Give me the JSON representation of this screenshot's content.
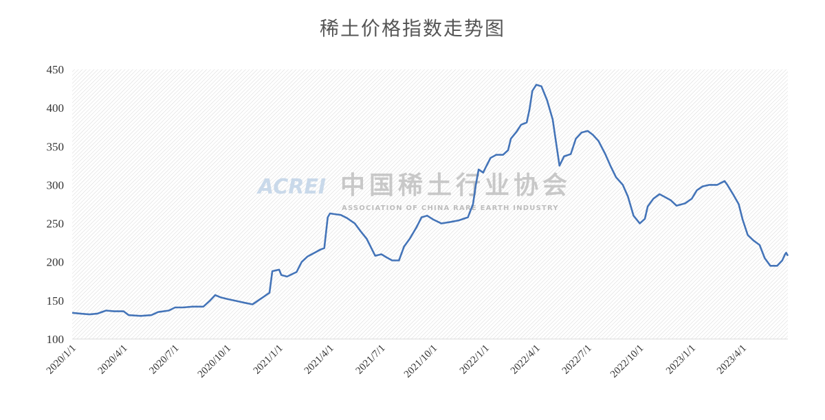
{
  "chart_data": {
    "type": "line",
    "title": "稀土价格指数走势图",
    "ylim": [
      100,
      450
    ],
    "yticks": [
      100,
      150,
      200,
      250,
      300,
      350,
      400,
      450
    ],
    "xlim": [
      "2020-01-01",
      "2023-06-20"
    ],
    "xticks": [
      {
        "label": "2020/1/1",
        "date": "2020-01-01"
      },
      {
        "label": "2020/4/1",
        "date": "2020-04-01"
      },
      {
        "label": "2020/7/1",
        "date": "2020-07-01"
      },
      {
        "label": "2020/10/1",
        "date": "2020-10-01"
      },
      {
        "label": "2021/1/1",
        "date": "2021-01-01"
      },
      {
        "label": "2021/4/1",
        "date": "2021-04-01"
      },
      {
        "label": "2021/7/1",
        "date": "2021-07-01"
      },
      {
        "label": "2021/10/1",
        "date": "2021-10-01"
      },
      {
        "label": "2022/1/1",
        "date": "2022-01-01"
      },
      {
        "label": "2022/4/1",
        "date": "2022-04-01"
      },
      {
        "label": "2022/7/1",
        "date": "2022-07-01"
      },
      {
        "label": "2022/10/1",
        "date": "2022-10-01"
      },
      {
        "label": "2023/1/1",
        "date": "2023-01-01"
      },
      {
        "label": "2023/4/1",
        "date": "2023-04-01"
      }
    ],
    "grid": false,
    "series": [
      {
        "color": "#4474b8",
        "points": [
          [
            "2020-01-01",
            134
          ],
          [
            "2020-01-15",
            133
          ],
          [
            "2020-02-01",
            132
          ],
          [
            "2020-02-15",
            133
          ],
          [
            "2020-03-01",
            137
          ],
          [
            "2020-03-15",
            136
          ],
          [
            "2020-04-01",
            136
          ],
          [
            "2020-04-10",
            131
          ],
          [
            "2020-05-01",
            130
          ],
          [
            "2020-05-20",
            131
          ],
          [
            "2020-06-01",
            135
          ],
          [
            "2020-06-20",
            137
          ],
          [
            "2020-07-01",
            141
          ],
          [
            "2020-07-15",
            141
          ],
          [
            "2020-08-01",
            142
          ],
          [
            "2020-08-20",
            142
          ],
          [
            "2020-09-01",
            150
          ],
          [
            "2020-09-10",
            157
          ],
          [
            "2020-09-20",
            154
          ],
          [
            "2020-10-01",
            152
          ],
          [
            "2020-10-20",
            149
          ],
          [
            "2020-11-01",
            147
          ],
          [
            "2020-11-15",
            145
          ],
          [
            "2020-12-01",
            153
          ],
          [
            "2020-12-15",
            160
          ],
          [
            "2020-12-20",
            188
          ],
          [
            "2021-01-01",
            190
          ],
          [
            "2021-01-05",
            183
          ],
          [
            "2021-01-15",
            181
          ],
          [
            "2021-02-01",
            187
          ],
          [
            "2021-02-10",
            200
          ],
          [
            "2021-02-20",
            207
          ],
          [
            "2021-03-05",
            212
          ],
          [
            "2021-03-15",
            216
          ],
          [
            "2021-03-22",
            218
          ],
          [
            "2021-03-28",
            258
          ],
          [
            "2021-04-01",
            263
          ],
          [
            "2021-04-10",
            262
          ],
          [
            "2021-04-20",
            261
          ],
          [
            "2021-05-01",
            257
          ],
          [
            "2021-05-15",
            250
          ],
          [
            "2021-05-25",
            240
          ],
          [
            "2021-06-05",
            230
          ],
          [
            "2021-06-20",
            208
          ],
          [
            "2021-07-01",
            210
          ],
          [
            "2021-07-10",
            206
          ],
          [
            "2021-07-20",
            202
          ],
          [
            "2021-08-01",
            202
          ],
          [
            "2021-08-10",
            220
          ],
          [
            "2021-08-20",
            230
          ],
          [
            "2021-09-01",
            245
          ],
          [
            "2021-09-10",
            258
          ],
          [
            "2021-09-20",
            260
          ],
          [
            "2021-10-01",
            255
          ],
          [
            "2021-10-15",
            250
          ],
          [
            "2021-11-01",
            252
          ],
          [
            "2021-11-15",
            254
          ],
          [
            "2021-12-01",
            258
          ],
          [
            "2021-12-10",
            275
          ],
          [
            "2021-12-15",
            300
          ],
          [
            "2021-12-20",
            320
          ],
          [
            "2021-12-28",
            316
          ],
          [
            "2022-01-01",
            322
          ],
          [
            "2022-01-10",
            335
          ],
          [
            "2022-01-20",
            339
          ],
          [
            "2022-02-01",
            339
          ],
          [
            "2022-02-10",
            345
          ],
          [
            "2022-02-15",
            360
          ],
          [
            "2022-02-25",
            369
          ],
          [
            "2022-03-05",
            378
          ],
          [
            "2022-03-15",
            381
          ],
          [
            "2022-03-20",
            398
          ],
          [
            "2022-03-25",
            422
          ],
          [
            "2022-04-01",
            430
          ],
          [
            "2022-04-10",
            428
          ],
          [
            "2022-04-20",
            410
          ],
          [
            "2022-04-30",
            385
          ],
          [
            "2022-05-05",
            360
          ],
          [
            "2022-05-12",
            325
          ],
          [
            "2022-05-20",
            337
          ],
          [
            "2022-06-01",
            340
          ],
          [
            "2022-06-10",
            360
          ],
          [
            "2022-06-20",
            368
          ],
          [
            "2022-07-01",
            370
          ],
          [
            "2022-07-10",
            365
          ],
          [
            "2022-07-20",
            357
          ],
          [
            "2022-08-01",
            340
          ],
          [
            "2022-08-10",
            325
          ],
          [
            "2022-08-20",
            310
          ],
          [
            "2022-09-01",
            300
          ],
          [
            "2022-09-10",
            285
          ],
          [
            "2022-09-20",
            260
          ],
          [
            "2022-10-01",
            250
          ],
          [
            "2022-10-10",
            256
          ],
          [
            "2022-10-15",
            272
          ],
          [
            "2022-10-25",
            282
          ],
          [
            "2022-11-05",
            288
          ],
          [
            "2022-11-15",
            284
          ],
          [
            "2022-11-25",
            280
          ],
          [
            "2022-12-05",
            273
          ],
          [
            "2022-12-20",
            276
          ],
          [
            "2023-01-01",
            282
          ],
          [
            "2023-01-10",
            293
          ],
          [
            "2023-01-20",
            298
          ],
          [
            "2023-02-01",
            300
          ],
          [
            "2023-02-15",
            300
          ],
          [
            "2023-02-28",
            305
          ],
          [
            "2023-03-05",
            300
          ],
          [
            "2023-03-15",
            288
          ],
          [
            "2023-03-25",
            275
          ],
          [
            "2023-04-01",
            255
          ],
          [
            "2023-04-10",
            235
          ],
          [
            "2023-04-20",
            228
          ],
          [
            "2023-05-01",
            222
          ],
          [
            "2023-05-10",
            205
          ],
          [
            "2023-05-20",
            195
          ],
          [
            "2023-06-01",
            195
          ],
          [
            "2023-06-10",
            202
          ],
          [
            "2023-06-15",
            210
          ],
          [
            "2023-06-17",
            212
          ],
          [
            "2023-06-20",
            208
          ]
        ]
      }
    ],
    "watermark": {
      "logo": "ACREI",
      "name_cn": "中国稀土行业协会",
      "name_en": "ASSOCIATION OF CHINA RARE EARTH INDUSTRY"
    }
  }
}
